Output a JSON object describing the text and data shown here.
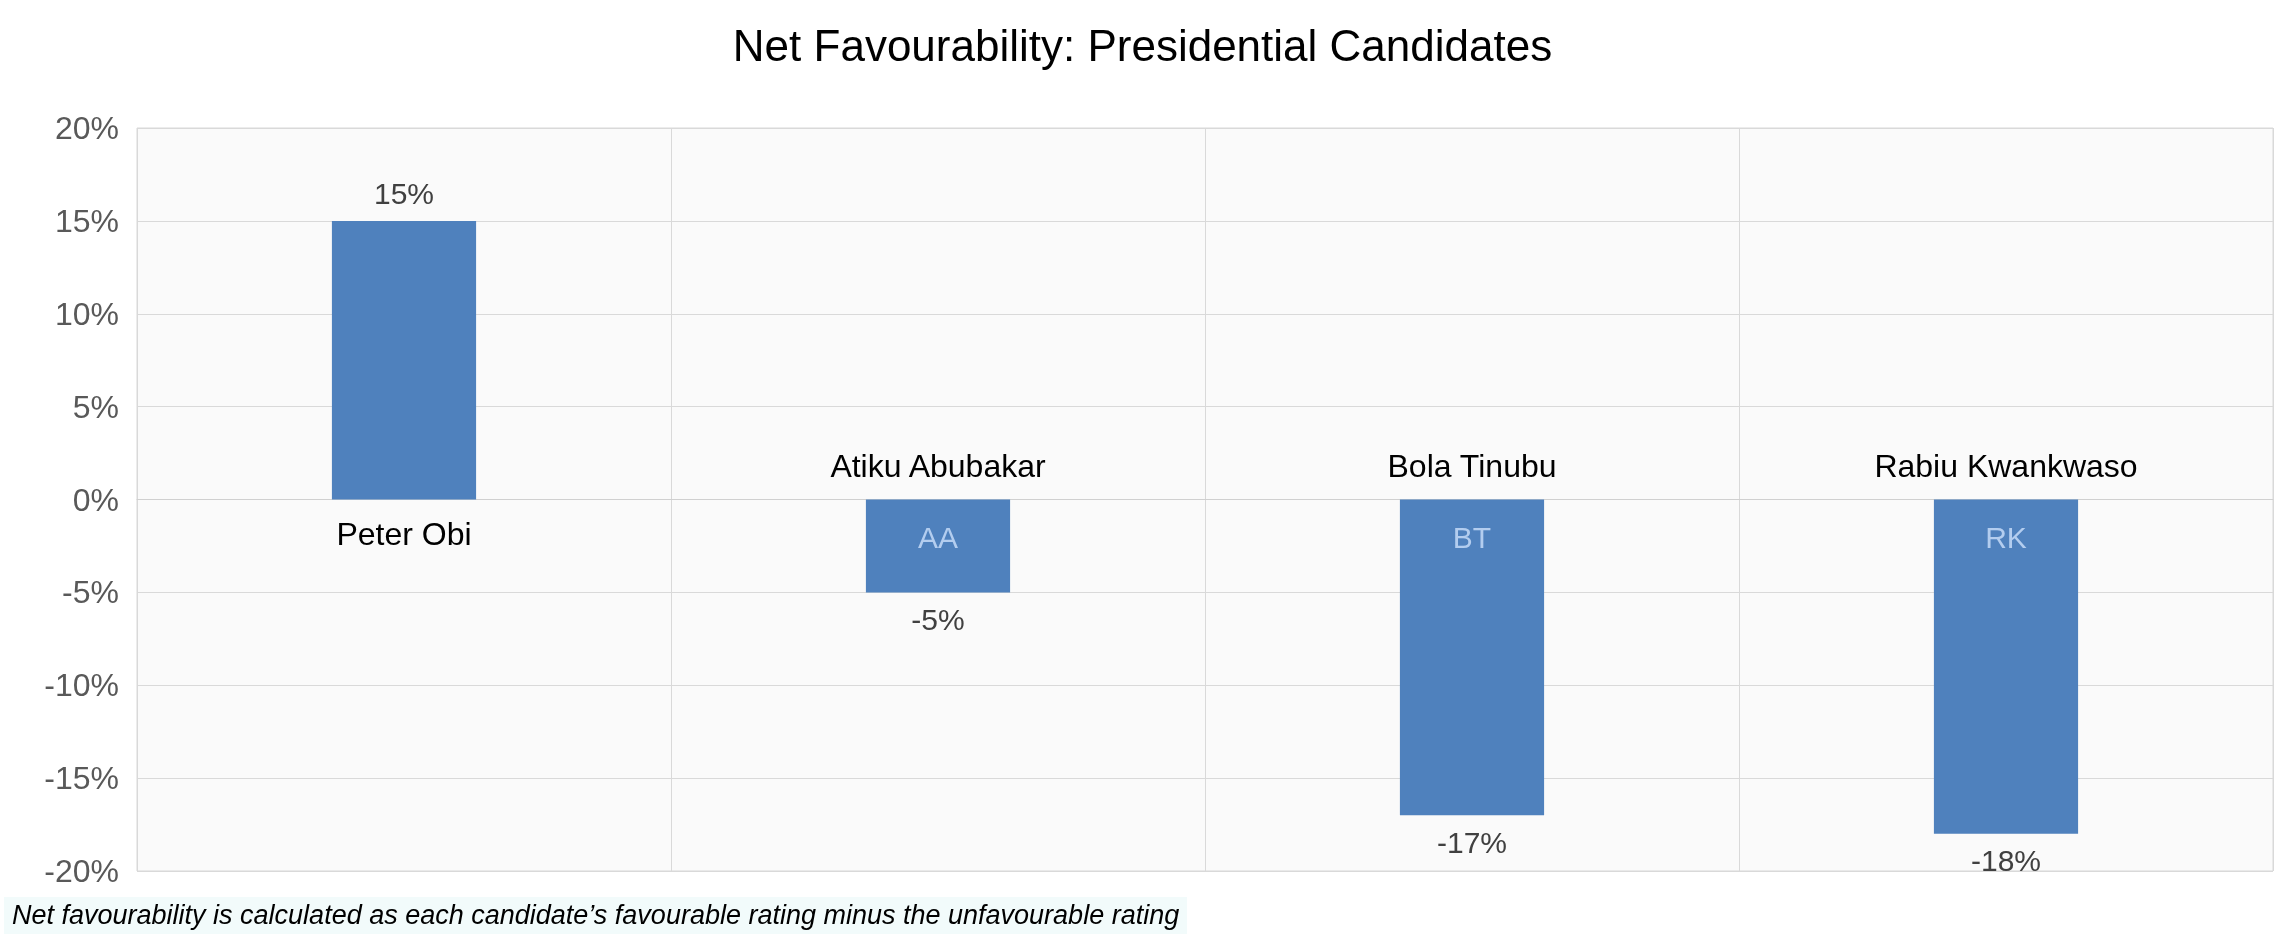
{
  "chart_data": {
    "type": "bar",
    "title": "Net Favourability: Presidential Candidates",
    "categories": [
      "Peter Obi",
      "Atiku Abubakar",
      "Bola Tinubu",
      "Rabiu Kwankwaso"
    ],
    "values": [
      15,
      -5,
      -17,
      -18
    ],
    "color": "#4f81bd",
    "ylim": [
      -20,
      20
    ],
    "yticks": [
      {
        "value": -20,
        "label": "-20%"
      },
      {
        "value": -15,
        "label": "-15%"
      },
      {
        "value": -10,
        "label": "-10%"
      },
      {
        "value": -5,
        "label": "-5%"
      },
      {
        "value": 0,
        "label": "0%"
      },
      {
        "value": 5,
        "label": "5%"
      },
      {
        "value": 10,
        "label": "10%"
      },
      {
        "value": 15,
        "label": "15%"
      },
      {
        "value": 20,
        "label": "20%"
      }
    ],
    "value_labels": [
      "15%",
      "-5%",
      "-17%",
      "-18%"
    ],
    "grid": true,
    "annotations": [
      "AA",
      "BT",
      "RK",
      "Net favourability is calculated as each candidate’s favourable rating minus the unfavourable rating"
    ]
  }
}
